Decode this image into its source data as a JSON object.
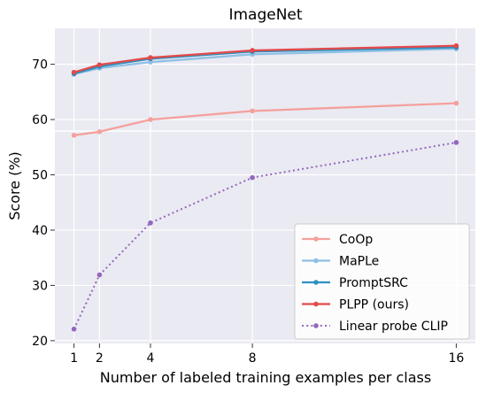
{
  "chart_data": {
    "type": "line",
    "title": "ImageNet",
    "xlabel": "Number of labeled training examples per class",
    "ylabel": "Score (%)",
    "x": [
      1,
      2,
      4,
      8,
      16
    ],
    "xlim": [
      0.25,
      16.75
    ],
    "ylim": [
      19.5,
      76.5
    ],
    "xticks": [
      1,
      2,
      4,
      8,
      16
    ],
    "yticks": [
      20,
      30,
      40,
      50,
      60,
      70
    ],
    "grid": true,
    "legend_position": "lower-right",
    "reference_line": {
      "y": 57.9,
      "color": "#ffffff"
    },
    "series": [
      {
        "name": "CoOp",
        "color": "#f4a09c",
        "style": "solid",
        "values": [
          57.15,
          57.8,
          60.0,
          61.55,
          62.95
        ]
      },
      {
        "name": "MaPLe",
        "color": "#8ec0e4",
        "style": "solid",
        "values": [
          68.2,
          69.3,
          70.4,
          71.8,
          72.8
        ]
      },
      {
        "name": "PromptSRC",
        "color": "#2d91c0",
        "style": "solid",
        "values": [
          68.3,
          69.6,
          71.0,
          72.3,
          73.05
        ]
      },
      {
        "name": "PLPP (ours)",
        "color": "#e24a4a",
        "style": "solid",
        "values": [
          68.55,
          69.9,
          71.2,
          72.5,
          73.35
        ]
      },
      {
        "name": "Linear probe CLIP",
        "color": "#9467bd",
        "style": "dotted",
        "values": [
          22.1,
          31.9,
          41.3,
          49.5,
          55.85
        ]
      }
    ]
  }
}
